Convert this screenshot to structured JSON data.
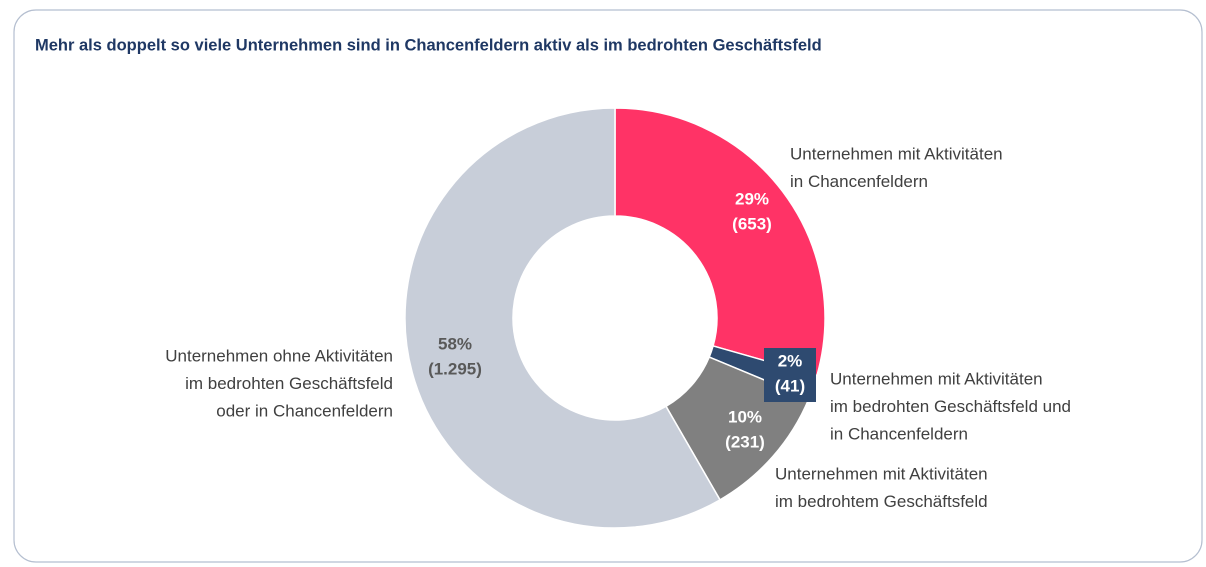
{
  "chart_data": {
    "type": "donut",
    "title": "Mehr als doppelt so viele Unternehmen sind in Chancenfeldern aktiv als im bedrohten Geschäftsfeld",
    "categories": [
      [
        "Unternehmen mit Aktivitäten",
        "in Chancenfeldern"
      ],
      [
        "Unternehmen mit Aktivitäten",
        "im bedrohten Geschäftsfeld und",
        "in Chancenfeldern"
      ],
      [
        "Unternehmen mit Aktivitäten",
        "im bedrohtem Geschäftsfeld"
      ],
      [
        "Unternehmen ohne Aktivitäten",
        "im bedrohten Geschäftsfeld",
        "oder in Chancenfeldern"
      ]
    ],
    "values": [
      653,
      41,
      231,
      1295
    ],
    "value_labels": [
      "(653)",
      "(41)",
      "(231)",
      "(1.295)"
    ],
    "percent_labels": [
      "29%",
      "2%",
      "10%",
      "58%"
    ],
    "colors": [
      "#ff3366",
      "#2e4a70",
      "#808080",
      "#c8ced9"
    ],
    "label_colors": [
      "#ffffff",
      "#ffffff",
      "#ffffff",
      "#595959"
    ]
  }
}
